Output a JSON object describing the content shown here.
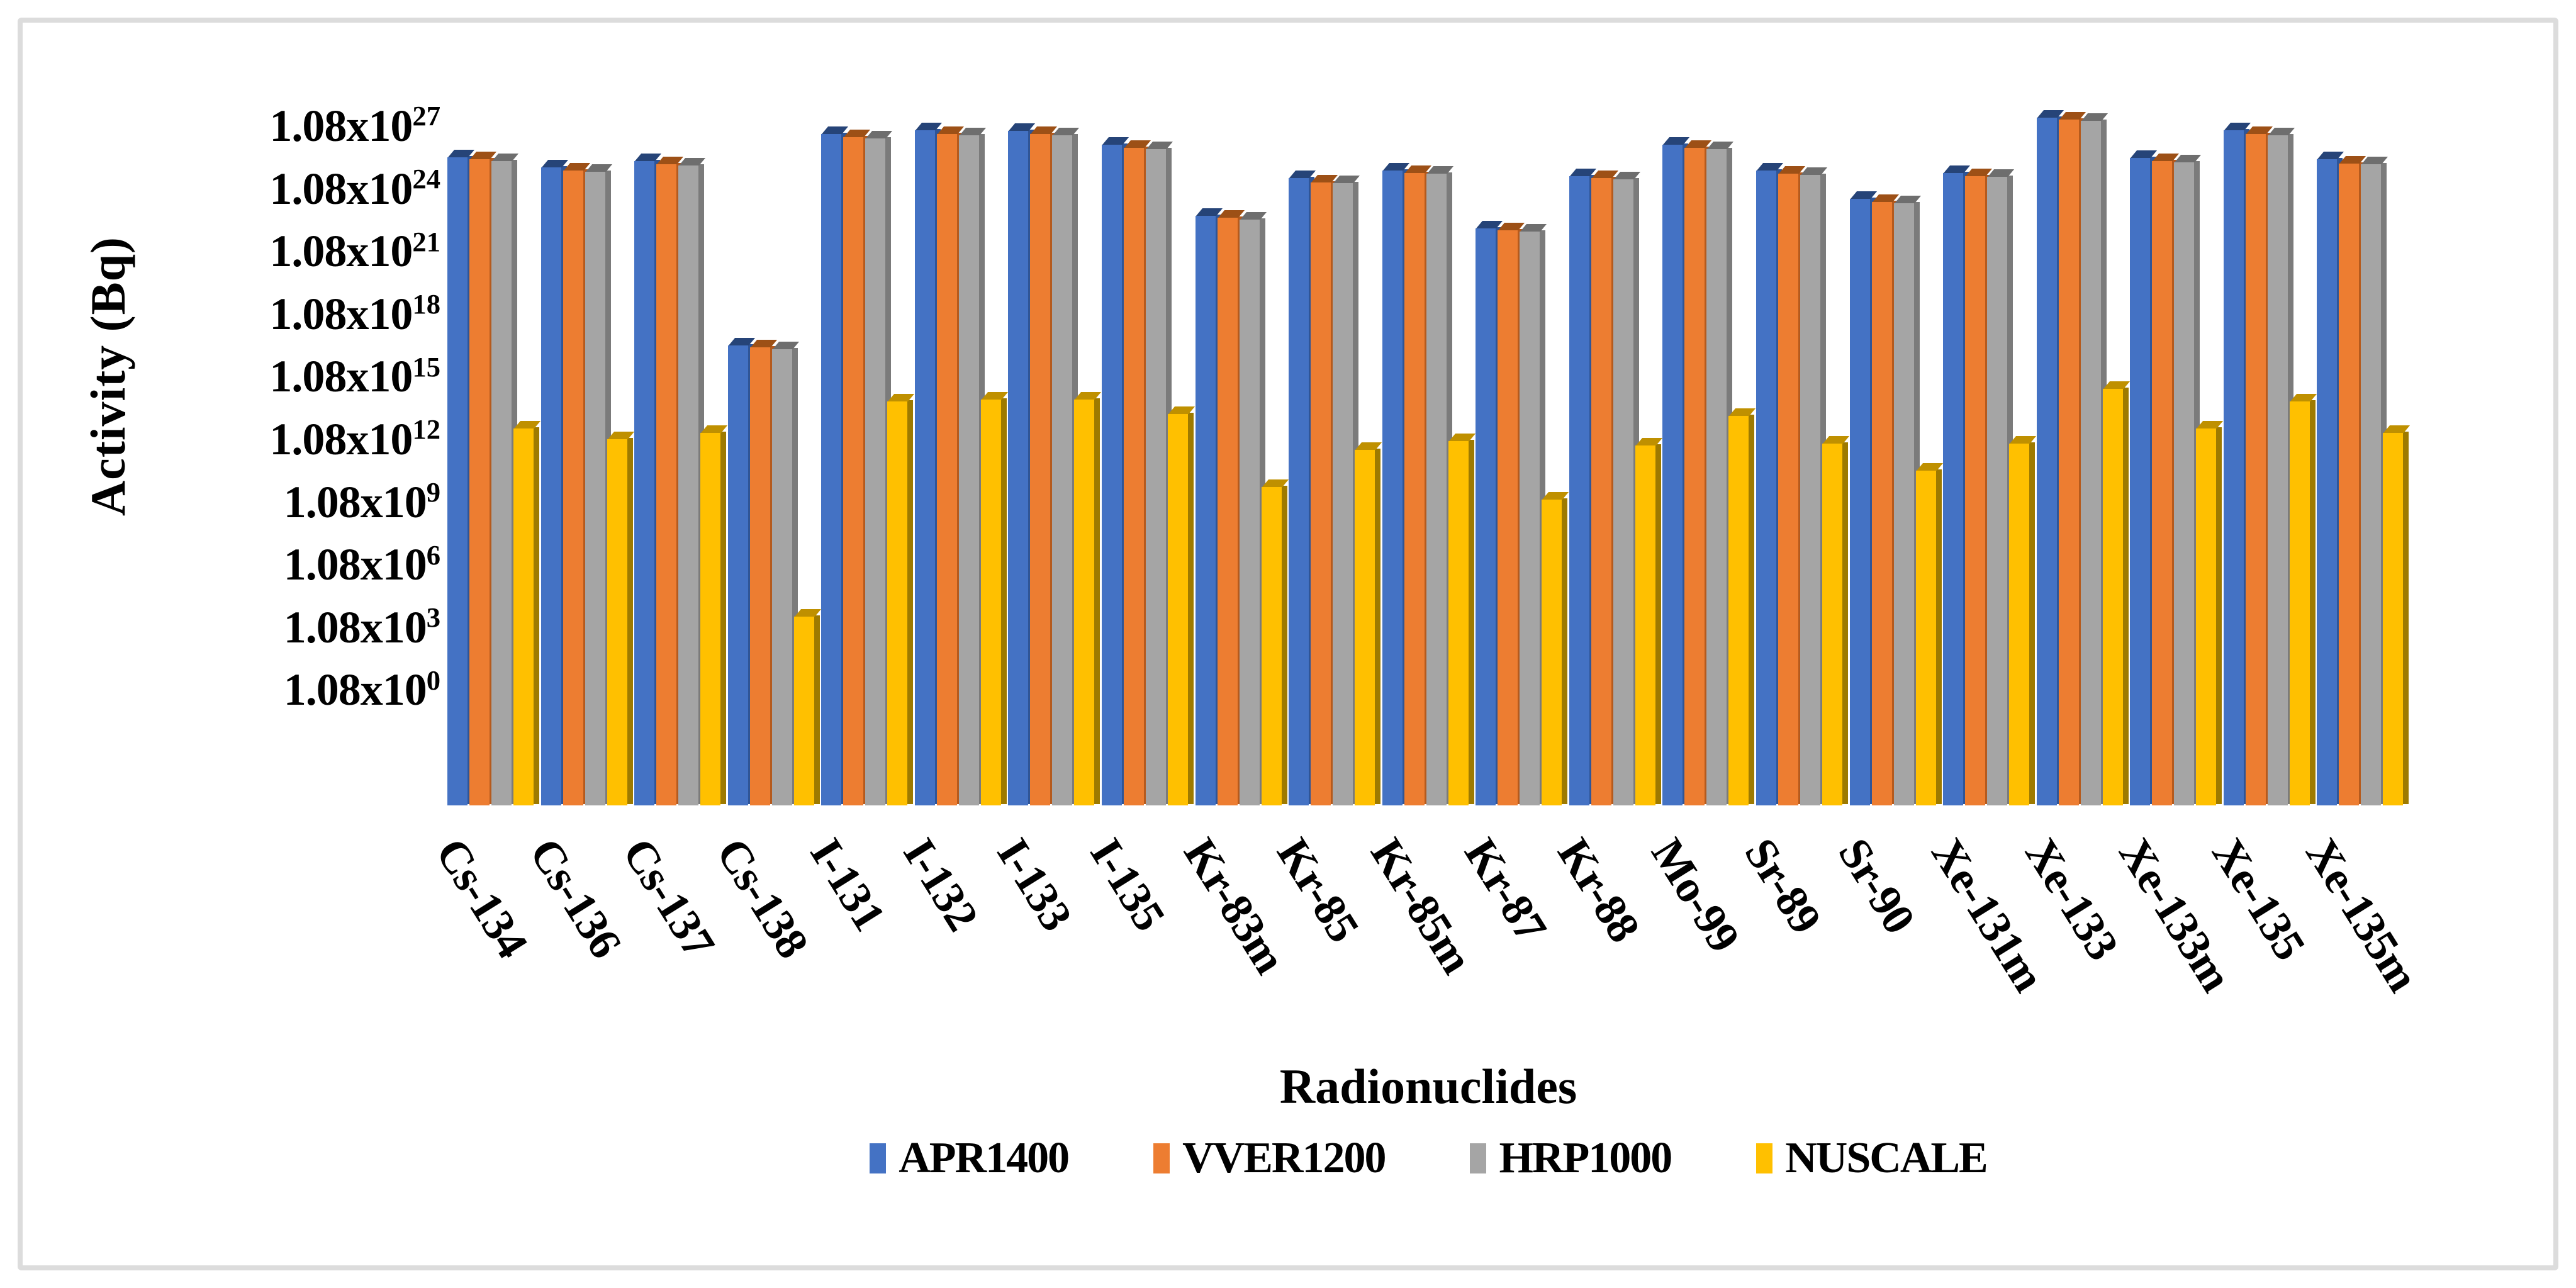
{
  "figure": {
    "background_color": "#ffffff",
    "border_color": "#dcdcdc"
  },
  "y_axis": {
    "title": "Activity (Bq)",
    "tick_labels": [
      "1.08x10^27",
      "1.08x10^24",
      "1.08x10^21",
      "1.08x10^18",
      "1.08x10^15",
      "1.08x10^12",
      "1.08x10^9",
      "1.08x10^6",
      "1.08x10^3",
      "1.08x10^0"
    ],
    "tick_exponents": [
      27,
      24,
      21,
      18,
      15,
      12,
      9,
      6,
      3,
      0
    ]
  },
  "x_axis": {
    "title": "Radionuclides"
  },
  "legend": {
    "position": "bottom",
    "items": [
      {
        "label": "APR1400",
        "color": "#4472C4"
      },
      {
        "label": "VVER1200",
        "color": "#ED7D31"
      },
      {
        "label": "HRP1000",
        "color": "#A5A5A5"
      },
      {
        "label": "NUSCALE",
        "color": "#FFC000"
      }
    ]
  },
  "chart_data": {
    "type": "bar",
    "title": "",
    "xlabel": "Radionuclides",
    "ylabel": "Activity (Bq)",
    "y_scale": "log10",
    "grid": "off",
    "legend_position": "bottom",
    "y_tick_labels": [
      "1.08x10^27",
      "1.08x10^24",
      "1.08x10^21",
      "1.08x10^18",
      "1.08x10^15",
      "1.08x10^12",
      "1.08x10^9",
      "1.08x10^6",
      "1.08x10^3",
      "1.08x10^0"
    ],
    "ylim_log10": [
      0,
      27
    ],
    "categories": [
      "Cs-134",
      "Cs-136",
      "Cs-137",
      "Cs-138",
      "I-131",
      "I-132",
      "I-133",
      "I-135",
      "Kr-83m",
      "Kr-85",
      "Kr-85m",
      "Kr-87",
      "Kr-88",
      "Mo-99",
      "Sr-89",
      "Sr-90",
      "Xe-131m",
      "Xe-133",
      "Xe-133m",
      "Xe-135",
      "Xe-135m"
    ],
    "series": [
      {
        "name": "APR1400",
        "color": "#4472C4",
        "side_color": "#2f5597",
        "cap_color": "#264478",
        "log10_activity_bq": [
          25.5,
          25.0,
          25.3,
          16.5,
          26.6,
          26.8,
          26.75,
          26.1,
          22.7,
          24.5,
          24.85,
          22.1,
          24.6,
          26.1,
          24.85,
          23.5,
          24.75,
          27.4,
          25.45,
          26.8,
          25.4
        ]
      },
      {
        "name": "VVER1200",
        "color": "#ED7D31",
        "side_color": "#b55a1d",
        "cap_color": "#9d5016",
        "log10_activity_bq": [
          25.4,
          24.85,
          25.15,
          16.4,
          26.45,
          26.6,
          26.6,
          25.95,
          22.6,
          24.3,
          24.75,
          22.0,
          24.5,
          25.95,
          24.7,
          23.35,
          24.6,
          27.3,
          25.3,
          26.6,
          25.2
        ]
      },
      {
        "name": "HRP1000",
        "color": "#A5A5A5",
        "side_color": "#7b7b7b",
        "cap_color": "#6e6e6e",
        "log10_activity_bq": [
          25.3,
          24.8,
          25.1,
          16.3,
          26.4,
          26.55,
          26.55,
          25.9,
          22.5,
          24.25,
          24.7,
          21.95,
          24.45,
          25.9,
          24.65,
          23.3,
          24.55,
          27.25,
          25.25,
          26.55,
          25.15
        ]
      },
      {
        "name": "NUSCALE",
        "color": "#FFC000",
        "side_color": "#9e7a00",
        "cap_color": "#bf9000",
        "log10_activity_bq": [
          12.5,
          12.0,
          12.3,
          3.5,
          13.8,
          13.9,
          13.9,
          13.2,
          9.7,
          11.5,
          11.9,
          9.1,
          11.7,
          13.1,
          11.8,
          10.5,
          11.8,
          14.4,
          12.5,
          13.8,
          12.3
        ]
      }
    ]
  }
}
